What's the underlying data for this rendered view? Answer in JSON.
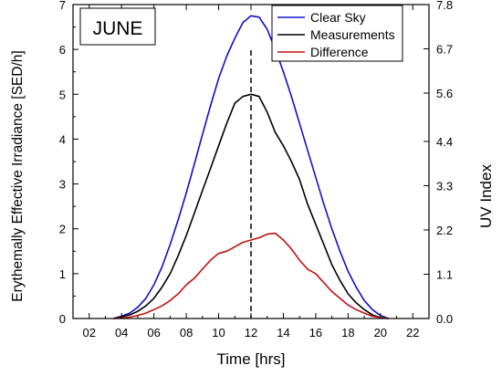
{
  "chart_data": {
    "type": "line",
    "panel_label": "JUNE",
    "xlabel": "Time [hrs]",
    "ylabel_left": "Erythemally Effective Irradiance [SED/h]",
    "ylabel_right": "UV Index",
    "xlim": [
      1,
      23
    ],
    "ylim_left": [
      0,
      7
    ],
    "ylim_right": [
      0,
      7.8
    ],
    "x_ticks": [
      "02",
      "04",
      "06",
      "08",
      "10",
      "12",
      "14",
      "16",
      "18",
      "20",
      "22"
    ],
    "y_left_ticks": [
      "0",
      "1",
      "2",
      "3",
      "4",
      "5",
      "6",
      "7"
    ],
    "y_right_ticks": [
      "0.0",
      "1.1",
      "2.2",
      "3.3",
      "4.4",
      "5.6",
      "6.7",
      "7.8"
    ],
    "vertical_line_at": 12,
    "legend_position": "top-right",
    "x": [
      3.5,
      4,
      4.5,
      5,
      5.5,
      6,
      6.5,
      7,
      7.5,
      8,
      8.5,
      9,
      9.5,
      10,
      10.5,
      11,
      11.5,
      12,
      12.5,
      13,
      13.5,
      14,
      14.5,
      15,
      15.5,
      16,
      16.5,
      17,
      17.5,
      18,
      18.5,
      19,
      19.5,
      20,
      20.5
    ],
    "series": [
      {
        "name": "Clear Sky",
        "color": "#1010c8",
        "values": [
          0.0,
          0.05,
          0.12,
          0.25,
          0.45,
          0.75,
          1.15,
          1.65,
          2.2,
          2.8,
          3.45,
          4.1,
          4.75,
          5.35,
          5.85,
          6.25,
          6.6,
          6.75,
          6.72,
          6.45,
          6.0,
          5.5,
          4.95,
          4.35,
          3.75,
          3.15,
          2.55,
          2.0,
          1.5,
          1.05,
          0.7,
          0.4,
          0.2,
          0.07,
          0.0
        ]
      },
      {
        "name": "Measurements",
        "color": "#000000",
        "values": [
          0.0,
          0.04,
          0.08,
          0.16,
          0.28,
          0.45,
          0.7,
          1.0,
          1.4,
          1.85,
          2.35,
          2.85,
          3.35,
          3.85,
          4.35,
          4.8,
          4.95,
          5.0,
          4.95,
          4.6,
          4.15,
          3.85,
          3.5,
          3.1,
          2.55,
          2.1,
          1.65,
          1.2,
          0.85,
          0.55,
          0.35,
          0.2,
          0.08,
          0.02,
          0.0
        ]
      },
      {
        "name": "Difference",
        "color": "#c01010",
        "values": [
          0.0,
          0.01,
          0.03,
          0.07,
          0.12,
          0.2,
          0.28,
          0.4,
          0.55,
          0.75,
          0.9,
          1.1,
          1.3,
          1.45,
          1.5,
          1.6,
          1.7,
          1.75,
          1.8,
          1.88,
          1.9,
          1.75,
          1.55,
          1.3,
          1.1,
          1.0,
          0.8,
          0.6,
          0.45,
          0.3,
          0.2,
          0.12,
          0.05,
          0.02,
          0.0
        ]
      }
    ]
  }
}
